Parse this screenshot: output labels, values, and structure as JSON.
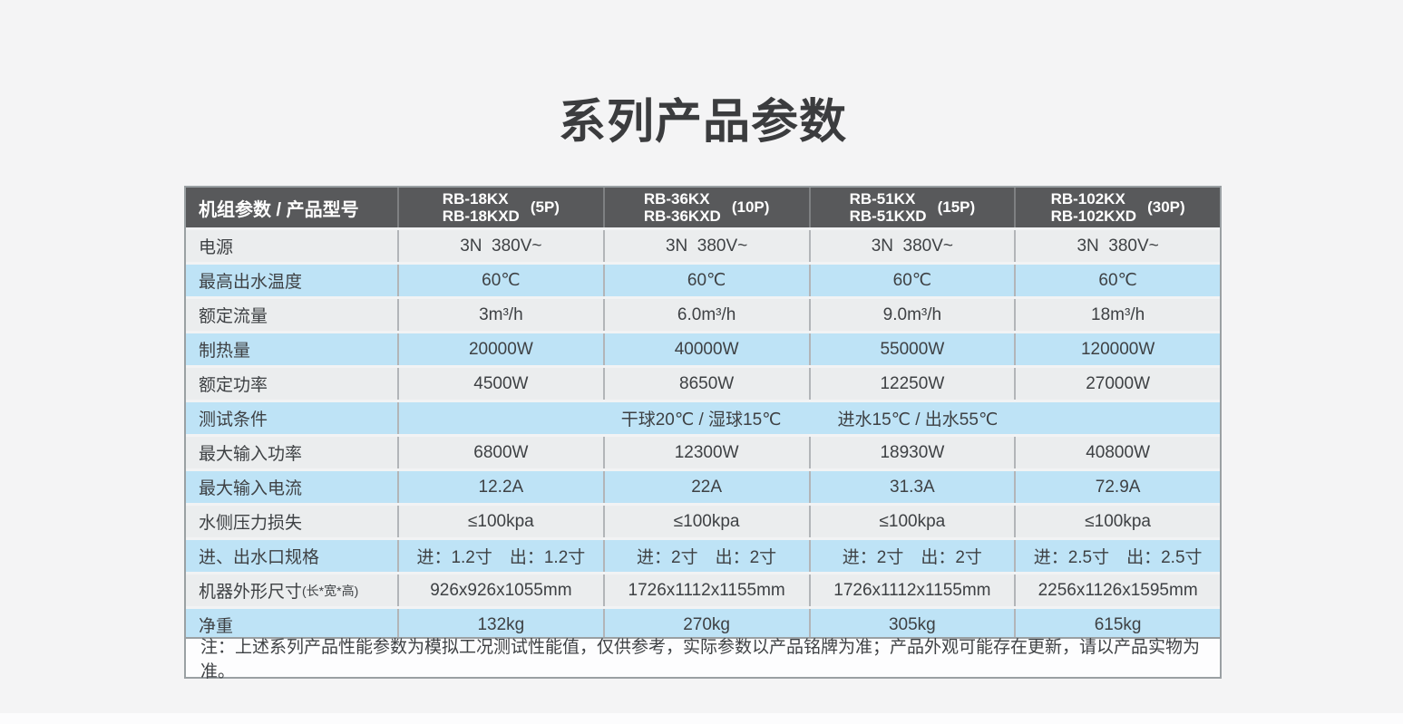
{
  "page": {
    "title": "系列产品参数"
  },
  "colors": {
    "header_bg": "#58595b",
    "row_gray": "#ebedee",
    "row_blue": "#bee3f6",
    "table_border": "#9aa0a3",
    "note_bg": "#fdfdfe",
    "text": "#3e4144"
  },
  "table": {
    "header": {
      "label": "机组参数 / 产品型号",
      "columns": [
        {
          "line1": "RB-18KX",
          "line2": "RB-18KXD",
          "hp": "(5P)"
        },
        {
          "line1": "RB-36KX",
          "line2": "RB-36KXD",
          "hp": "(10P)"
        },
        {
          "line1": "RB-51KX",
          "line2": "RB-51KXD",
          "hp": "(15P)"
        },
        {
          "line1": "RB-102KX",
          "line2": "RB-102KXD",
          "hp": "(30P)"
        }
      ]
    },
    "rows": [
      {
        "label": "电源",
        "values": [
          "3N  380V~",
          "3N  380V~",
          "3N  380V~",
          "3N  380V~"
        ]
      },
      {
        "label": "最高出水温度",
        "values": [
          "60℃",
          "60℃",
          "60℃",
          "60℃"
        ]
      },
      {
        "label": "额定流量",
        "values": [
          "3m³/h",
          "6.0m³/h",
          "9.0m³/h",
          "18m³/h"
        ]
      },
      {
        "label": "制热量",
        "values": [
          "20000W",
          "40000W",
          "55000W",
          "120000W"
        ]
      },
      {
        "label": "额定功率",
        "values": [
          "4500W",
          "8650W",
          "12250W",
          "27000W"
        ]
      },
      {
        "label": "测试条件",
        "span_parts": [
          "干球20℃ / 湿球15℃",
          "进水15℃ / 出水55℃"
        ]
      },
      {
        "label": "最大输入功率",
        "values": [
          "6800W",
          "12300W",
          "18930W",
          "40800W"
        ]
      },
      {
        "label": "最大输入电流",
        "values": [
          "12.2A",
          "22A",
          "31.3A",
          "72.9A"
        ]
      },
      {
        "label": "水侧压力损失",
        "values": [
          "≤100kpa",
          "≤100kpa",
          "≤100kpa",
          "≤100kpa"
        ]
      },
      {
        "label": "进、出水口规格",
        "values": [
          "进：1.2寸　出：1.2寸",
          "进：2寸　出：2寸",
          "进：2寸　出：2寸",
          "进：2.5寸　出：2.5寸"
        ]
      },
      {
        "label": "机器外形尺寸",
        "label_suffix": "(长*宽*高)",
        "values": [
          "926x926x1055mm",
          "1726x1112x1155mm",
          "1726x1112x1155mm",
          "2256x1126x1595mm"
        ]
      },
      {
        "label": "净重",
        "values": [
          "132kg",
          "270kg",
          "305kg",
          "615kg"
        ]
      }
    ],
    "note": "注：上述系列产品性能参数为模拟工况测试性能值，仅供参考，实际参数以产品铭牌为准；产品外观可能存在更新，请以产品实物为准。"
  }
}
